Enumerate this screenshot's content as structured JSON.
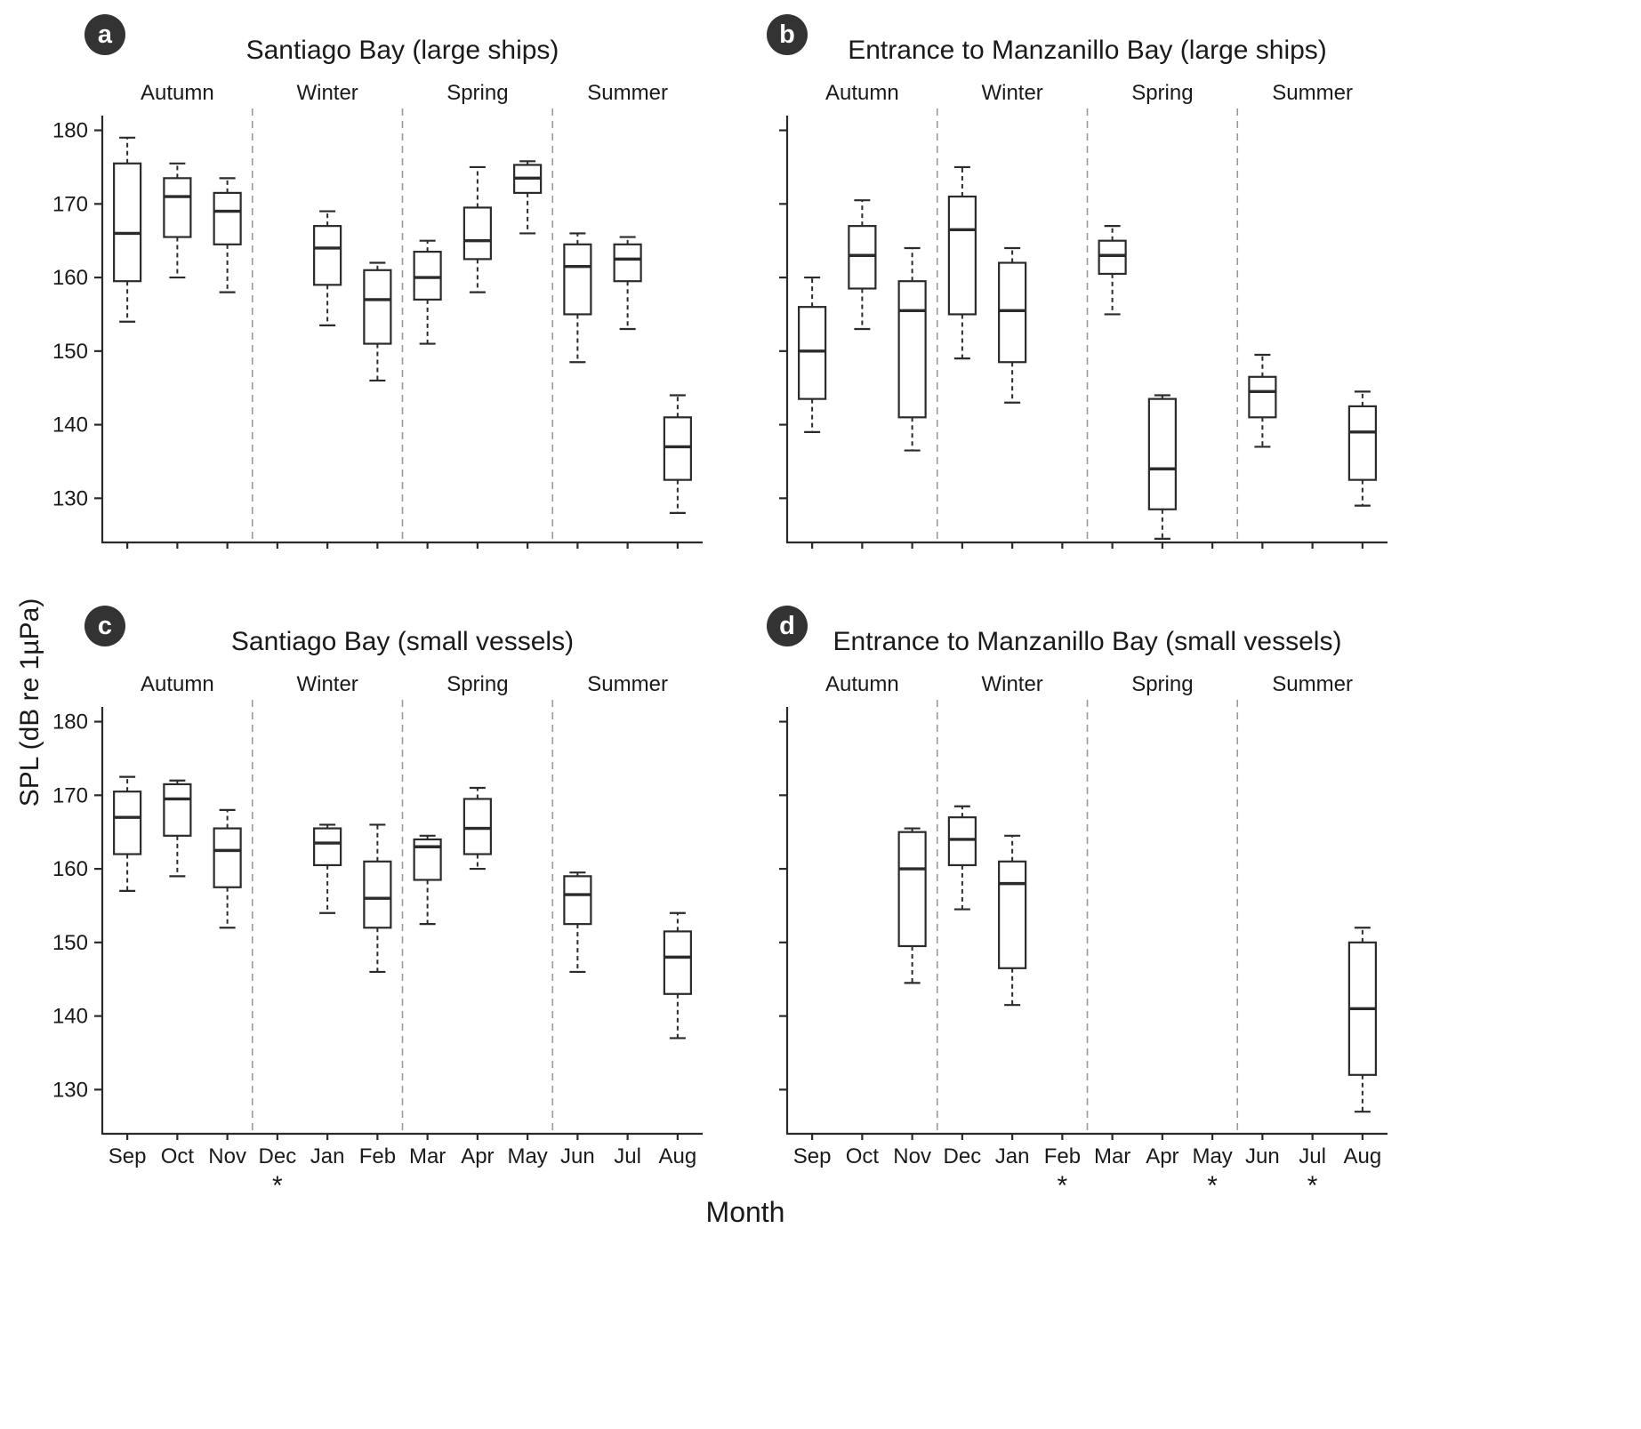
{
  "figure": {
    "ylabel": "SPL (dB re 1µPa)",
    "xlabel": "Month",
    "panel_labels": [
      "a",
      "b",
      "c",
      "d"
    ],
    "colors": {
      "axis": "#2a2a2a",
      "box_stroke": "#2b2b2b",
      "dashed_separator": "#999999",
      "panel_badge_bg": "#333333",
      "panel_badge_fg": "#ffffff",
      "text": "#1a1a1a"
    }
  },
  "chart_data": [
    {
      "type": "boxplot",
      "panel": "a",
      "title": "Santiago Bay (large ships)",
      "seasons": [
        "Autumn",
        "Winter",
        "Spring",
        "Summer"
      ],
      "months": [
        "Sep",
        "Oct",
        "Nov",
        "Dec",
        "Jan",
        "Feb",
        "Mar",
        "Apr",
        "May",
        "Jun",
        "Jul",
        "Aug"
      ],
      "ylim": [
        124,
        182
      ],
      "yticks": [
        130,
        140,
        150,
        160,
        170,
        180
      ],
      "show_ytick_labels": true,
      "show_month_labels": false,
      "asterisk_months": [],
      "boxes": [
        {
          "month": "Sep",
          "whislo": 154,
          "q1": 159.5,
          "med": 166,
          "q3": 175.5,
          "whishi": 179
        },
        {
          "month": "Oct",
          "whislo": 160,
          "q1": 165.5,
          "med": 171,
          "q3": 173.5,
          "whishi": 175.5
        },
        {
          "month": "Nov",
          "whislo": 158,
          "q1": 164.5,
          "med": 169,
          "q3": 171.5,
          "whishi": 173.5
        },
        null,
        {
          "month": "Jan",
          "whislo": 153.5,
          "q1": 159,
          "med": 164,
          "q3": 167,
          "whishi": 169
        },
        {
          "month": "Feb",
          "whislo": 146,
          "q1": 151,
          "med": 157,
          "q3": 161,
          "whishi": 162
        },
        {
          "month": "Mar",
          "whislo": 151,
          "q1": 157,
          "med": 160,
          "q3": 163.5,
          "whishi": 165
        },
        {
          "month": "Apr",
          "whislo": 158,
          "q1": 162.5,
          "med": 165,
          "q3": 169.5,
          "whishi": 175
        },
        {
          "month": "May",
          "whislo": 166,
          "q1": 171.5,
          "med": 173.5,
          "q3": 175.3,
          "whishi": 175.8
        },
        {
          "month": "Jun",
          "whislo": 148.5,
          "q1": 155,
          "med": 161.5,
          "q3": 164.5,
          "whishi": 166
        },
        {
          "month": "Jul",
          "whislo": 153,
          "q1": 159.5,
          "med": 162.5,
          "q3": 164.5,
          "whishi": 165.5
        },
        {
          "month": "Aug",
          "whislo": 128,
          "q1": 132.5,
          "med": 137,
          "q3": 141,
          "whishi": 144
        }
      ]
    },
    {
      "type": "boxplot",
      "panel": "b",
      "title": "Entrance to Manzanillo Bay (large ships)",
      "seasons": [
        "Autumn",
        "Winter",
        "Spring",
        "Summer"
      ],
      "months": [
        "Sep",
        "Oct",
        "Nov",
        "Dec",
        "Jan",
        "Feb",
        "Mar",
        "Apr",
        "May",
        "Jun",
        "Jul",
        "Aug"
      ],
      "ylim": [
        124,
        182
      ],
      "yticks": [
        130,
        140,
        150,
        160,
        170,
        180
      ],
      "show_ytick_labels": false,
      "show_month_labels": false,
      "asterisk_months": [],
      "boxes": [
        {
          "month": "Sep",
          "whislo": 139,
          "q1": 143.5,
          "med": 150,
          "q3": 156,
          "whishi": 160
        },
        {
          "month": "Oct",
          "whislo": 153,
          "q1": 158.5,
          "med": 163,
          "q3": 167,
          "whishi": 170.5
        },
        {
          "month": "Nov",
          "whislo": 136.5,
          "q1": 141,
          "med": 155.5,
          "q3": 159.5,
          "whishi": 164
        },
        {
          "month": "Dec",
          "whislo": 149,
          "q1": 155,
          "med": 166.5,
          "q3": 171,
          "whishi": 175
        },
        {
          "month": "Jan",
          "whislo": 143,
          "q1": 148.5,
          "med": 155.5,
          "q3": 162,
          "whishi": 164
        },
        null,
        {
          "month": "Mar",
          "whislo": 155,
          "q1": 160.5,
          "med": 163,
          "q3": 165,
          "whishi": 167
        },
        {
          "month": "Apr",
          "whislo": 124.5,
          "q1": 128.5,
          "med": 134,
          "q3": 143.5,
          "whishi": 144
        },
        null,
        {
          "month": "Jun",
          "whislo": 137,
          "q1": 141,
          "med": 144.5,
          "q3": 146.5,
          "whishi": 149.5
        },
        null,
        {
          "month": "Aug",
          "whislo": 129,
          "q1": 132.5,
          "med": 139,
          "q3": 142.5,
          "whishi": 144.5
        }
      ]
    },
    {
      "type": "boxplot",
      "panel": "c",
      "title": "Santiago Bay (small vessels)",
      "seasons": [
        "Autumn",
        "Winter",
        "Spring",
        "Summer"
      ],
      "months": [
        "Sep",
        "Oct",
        "Nov",
        "Dec",
        "Jan",
        "Feb",
        "Mar",
        "Apr",
        "May",
        "Jun",
        "Jul",
        "Aug"
      ],
      "ylim": [
        124,
        182
      ],
      "yticks": [
        130,
        140,
        150,
        160,
        170,
        180
      ],
      "show_ytick_labels": true,
      "show_month_labels": true,
      "asterisk_months": [
        "Dec"
      ],
      "boxes": [
        {
          "month": "Sep",
          "whislo": 157,
          "q1": 162,
          "med": 167,
          "q3": 170.5,
          "whishi": 172.5
        },
        {
          "month": "Oct",
          "whislo": 159,
          "q1": 164.5,
          "med": 169.5,
          "q3": 171.5,
          "whishi": 172
        },
        {
          "month": "Nov",
          "whislo": 152,
          "q1": 157.5,
          "med": 162.5,
          "q3": 165.5,
          "whishi": 168
        },
        null,
        {
          "month": "Jan",
          "whislo": 154,
          "q1": 160.5,
          "med": 163.5,
          "q3": 165.5,
          "whishi": 166
        },
        {
          "month": "Feb",
          "whislo": 146,
          "q1": 152,
          "med": 156,
          "q3": 161,
          "whishi": 166
        },
        {
          "month": "Mar",
          "whislo": 152.5,
          "q1": 158.5,
          "med": 163,
          "q3": 164,
          "whishi": 164.5
        },
        {
          "month": "Apr",
          "whislo": 160,
          "q1": 162,
          "med": 165.5,
          "q3": 169.5,
          "whishi": 171
        },
        null,
        {
          "month": "Jun",
          "whislo": 146,
          "q1": 152.5,
          "med": 156.5,
          "q3": 159,
          "whishi": 159.5
        },
        null,
        {
          "month": "Aug",
          "whislo": 137,
          "q1": 143,
          "med": 148,
          "q3": 151.5,
          "whishi": 154
        }
      ]
    },
    {
      "type": "boxplot",
      "panel": "d",
      "title": "Entrance to Manzanillo Bay (small vessels)",
      "seasons": [
        "Autumn",
        "Winter",
        "Spring",
        "Summer"
      ],
      "months": [
        "Sep",
        "Oct",
        "Nov",
        "Dec",
        "Jan",
        "Feb",
        "Mar",
        "Apr",
        "May",
        "Jun",
        "Jul",
        "Aug"
      ],
      "ylim": [
        124,
        182
      ],
      "yticks": [
        130,
        140,
        150,
        160,
        170,
        180
      ],
      "show_ytick_labels": false,
      "show_month_labels": true,
      "asterisk_months": [
        "Feb",
        "May",
        "Jul"
      ],
      "boxes": [
        null,
        null,
        {
          "month": "Nov",
          "whislo": 144.5,
          "q1": 149.5,
          "med": 160,
          "q3": 165,
          "whishi": 165.5
        },
        {
          "month": "Dec",
          "whislo": 154.5,
          "q1": 160.5,
          "med": 164,
          "q3": 167,
          "whishi": 168.5
        },
        {
          "month": "Jan",
          "whislo": 141.5,
          "q1": 146.5,
          "med": 158,
          "q3": 161,
          "whishi": 164.5
        },
        null,
        null,
        null,
        null,
        null,
        null,
        {
          "month": "Aug",
          "whislo": 127,
          "q1": 132,
          "med": 141,
          "q3": 150,
          "whishi": 152
        }
      ]
    }
  ]
}
